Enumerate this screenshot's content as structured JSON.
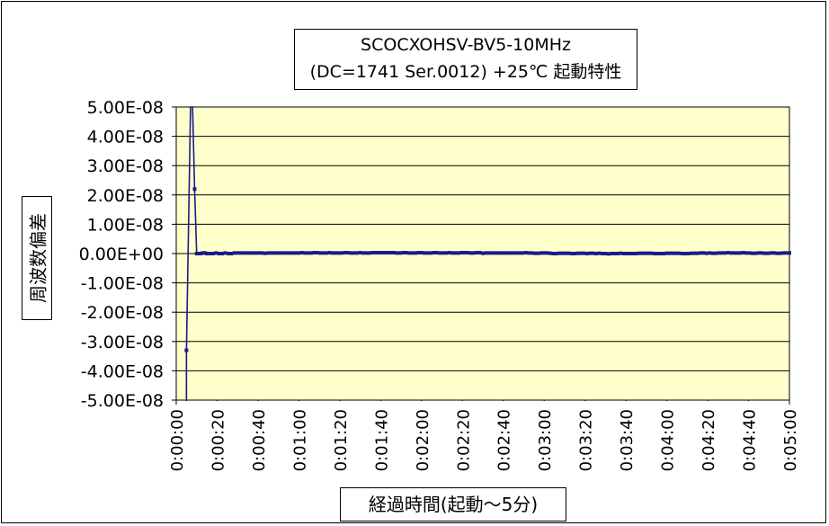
{
  "chart_data": {
    "type": "line",
    "title_line1": "SCOCXOHSV-BV5-10MHz",
    "title_line2": "(DC=1741 Ser.0012) +25℃ 起動特性",
    "xlabel": "経過時間(起動～5分)",
    "ylabel": "周波数偏差",
    "xlim_seconds": [
      0,
      300
    ],
    "ylim": [
      -5e-08,
      5e-08
    ],
    "grid": true,
    "legend": "none",
    "y_ticks": [
      "5.00E-08",
      "4.00E-08",
      "3.00E-08",
      "2.00E-08",
      "1.00E-08",
      "0.00E+00",
      "-1.00E-08",
      "-2.00E-08",
      "-3.00E-08",
      "-4.00E-08",
      "-5.00E-08"
    ],
    "x_ticks": [
      "0:00:00",
      "0:00:20",
      "0:00:40",
      "0:01:00",
      "0:01:20",
      "0:01:40",
      "0:02:00",
      "0:02:20",
      "0:02:40",
      "0:03:00",
      "0:03:20",
      "0:03:40",
      "0:04:00",
      "0:04:20",
      "0:04:40",
      "0:05:00"
    ],
    "series": [
      {
        "color": "#1a1a8c",
        "early_points": [
          [
            5,
            -3.3e-08
          ],
          [
            7,
            5e-08
          ],
          [
            8,
            5e-08
          ],
          [
            9,
            2.2e-08
          ],
          [
            10,
            0
          ],
          [
            11,
            0
          ],
          [
            12,
            0
          ],
          [
            13,
            2e-10
          ],
          [
            14,
            2e-10
          ]
        ],
        "steady_start": 15,
        "steady_end": 300,
        "steady_step": 1.5,
        "steady_values_e9": [
          0,
          0,
          0,
          0.2,
          0,
          0,
          0.2,
          0,
          0,
          0.2,
          0.2,
          0.2,
          0.2,
          0.2,
          0.2,
          0.2,
          0.2,
          0.2,
          0.2,
          0.1,
          0.2,
          0.2,
          0.2,
          0.2,
          0.2,
          0.2,
          0.2,
          0.2,
          0.2,
          0.2,
          0.2,
          0.3,
          0.2,
          0.2,
          0.2,
          0.3,
          0.3,
          0.2,
          0.2,
          0.2,
          0.3,
          0.2,
          0.2,
          0.2,
          0.2,
          0.3,
          0.3,
          0.2,
          0.2,
          0.2,
          0.3,
          0.2,
          0.2,
          0.2,
          0.3,
          0.3,
          0.3,
          0.3,
          0.3,
          0.3,
          0.3,
          0.3,
          0.2,
          0.2,
          0.3,
          0.3,
          0.2,
          0.2,
          0.2,
          0.3,
          0.3,
          0.2,
          0.2,
          0.2,
          0.3,
          0.3,
          0.2,
          0.2,
          0.2,
          0.3,
          0.2,
          0.2,
          0.2,
          0.3,
          0.3,
          0.3,
          0.2,
          0.2,
          0.3,
          0.3,
          0.1,
          0.2,
          0.2,
          0.2,
          0.2,
          0.2,
          0.2,
          0.2,
          0.2,
          0.2,
          0.2,
          0.2,
          0.2,
          0.2,
          0.3,
          0.2,
          0.2,
          0.1,
          0.1,
          0.2,
          0.2,
          0.2,
          0.1,
          0,
          0,
          0.1,
          0.1,
          0.1,
          0.1,
          0,
          0,
          0.1,
          0.1,
          0.1,
          0,
          0.1,
          0.1,
          0,
          0.1,
          0,
          0,
          -0.1,
          0,
          0,
          0,
          0.1,
          0,
          0,
          0,
          0,
          0,
          0.1,
          0.1,
          0.1,
          0.1,
          0.1,
          0,
          0,
          0,
          0,
          0.1,
          0.1,
          0.1,
          0.1,
          0.1,
          0,
          0,
          0,
          0.1,
          0.1,
          0.1,
          0.2,
          0.2,
          0.1,
          0.2,
          0.1,
          0.1,
          0.2,
          0.2,
          0.2,
          0.3,
          0.2,
          0.2,
          0.2,
          0.2,
          0.3,
          0.2,
          0.2,
          0.1,
          0.1,
          0.2,
          0.2,
          0.1,
          0.1,
          0.2,
          0.2,
          0.1,
          0.1,
          0.2,
          0.2,
          0.2,
          0.1,
          0.1,
          0.1,
          0.1,
          0.1,
          0,
          0,
          0,
          0.1
        ]
      }
    ]
  }
}
